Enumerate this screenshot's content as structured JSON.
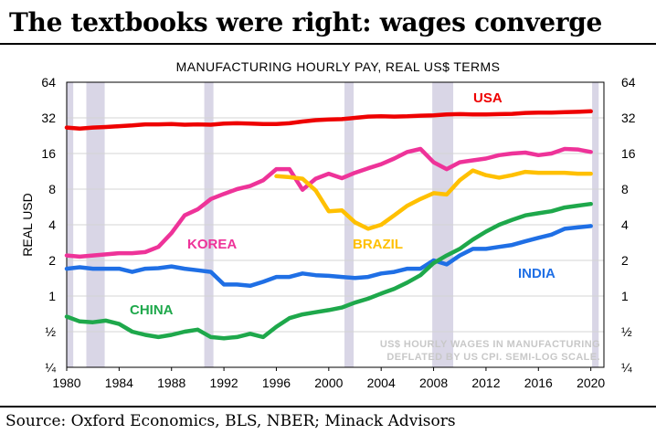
{
  "header": {
    "title": "The textbooks were right: wages converge",
    "source": "Source: Oxford Economics, BLS, NBER; Minack Advisors"
  },
  "chart_data": {
    "type": "line",
    "title": "MANUFACTURING HOURLY PAY, REAL US$ TERMS",
    "ylabel": "REAL USD",
    "xlabel": "",
    "yscale": "log2",
    "ylim": [
      0.25,
      64
    ],
    "xlim": [
      1980,
      2021
    ],
    "x_ticks": [
      1980,
      1984,
      1988,
      1992,
      1996,
      2000,
      2004,
      2008,
      2012,
      2016,
      2020
    ],
    "y_ticks": [
      0.25,
      0.5,
      1,
      2,
      4,
      8,
      16,
      32,
      64
    ],
    "y_tick_labels": [
      "¼",
      "½",
      "1",
      "2",
      "4",
      "8",
      "16",
      "32",
      "64"
    ],
    "grid": true,
    "note": [
      "US$ HOURLY WAGES IN MANUFACTURING",
      "DEFLATED BY US CPI. SEMI-LOG SCALE."
    ],
    "recession_bands": [
      [
        1980.0,
        1980.5
      ],
      [
        1981.5,
        1982.9
      ],
      [
        1990.5,
        1991.2
      ],
      [
        2001.2,
        2001.9
      ],
      [
        2007.9,
        2009.5
      ],
      [
        2020.1,
        2020.6
      ]
    ],
    "series": [
      {
        "name": "USA",
        "color": "#ee0000",
        "x": [
          1980,
          1981,
          1982,
          1983,
          1984,
          1985,
          1986,
          1987,
          1988,
          1989,
          1990,
          1991,
          1992,
          1993,
          1994,
          1995,
          1996,
          1997,
          1998,
          1999,
          2000,
          2001,
          2002,
          2003,
          2004,
          2005,
          2006,
          2007,
          2008,
          2009,
          2010,
          2011,
          2012,
          2013,
          2014,
          2015,
          2016,
          2017,
          2018,
          2019,
          2020
        ],
        "values": [
          26.5,
          26.0,
          26.5,
          26.8,
          27.2,
          27.6,
          28.2,
          28.2,
          28.4,
          28.0,
          28.2,
          28.0,
          28.6,
          28.8,
          28.6,
          28.4,
          28.4,
          28.8,
          29.8,
          30.6,
          31.0,
          31.2,
          32.0,
          32.8,
          33.0,
          32.8,
          33.0,
          33.4,
          33.6,
          34.2,
          34.4,
          34.2,
          34.2,
          34.4,
          34.6,
          35.2,
          35.4,
          35.4,
          35.8,
          36.0,
          36.4
        ]
      },
      {
        "name": "KOREA",
        "color": "#ee3399",
        "x": [
          1980,
          1981,
          1982,
          1983,
          1984,
          1985,
          1986,
          1987,
          1988,
          1989,
          1990,
          1991,
          1992,
          1993,
          1994,
          1995,
          1996,
          1997,
          1998,
          1999,
          2000,
          2001,
          2002,
          2003,
          2004,
          2005,
          2006,
          2007,
          2008,
          2009,
          2010,
          2011,
          2012,
          2013,
          2014,
          2015,
          2016,
          2017,
          2018,
          2019,
          2020
        ],
        "values": [
          2.2,
          2.15,
          2.2,
          2.25,
          2.3,
          2.3,
          2.35,
          2.6,
          3.4,
          4.8,
          5.4,
          6.6,
          7.3,
          8.0,
          8.5,
          9.5,
          11.8,
          11.8,
          7.9,
          9.8,
          10.8,
          9.9,
          11.0,
          12.0,
          13.0,
          14.5,
          16.5,
          17.5,
          13.5,
          11.8,
          13.5,
          14.0,
          14.5,
          15.5,
          16.0,
          16.3,
          15.5,
          16.0,
          17.5,
          17.3,
          16.5
        ]
      },
      {
        "name": "BRAZIL",
        "color": "#ffc000",
        "x": [
          1996,
          1997,
          1998,
          1999,
          2000,
          2001,
          2002,
          2003,
          2004,
          2005,
          2006,
          2007,
          2008,
          2009,
          2010,
          2011,
          2012,
          2013,
          2014,
          2015,
          2016,
          2017,
          2018,
          2019,
          2020
        ],
        "values": [
          10.3,
          10.1,
          9.8,
          7.8,
          5.2,
          5.3,
          4.2,
          3.7,
          4.0,
          4.8,
          5.8,
          6.6,
          7.4,
          7.2,
          9.5,
          11.5,
          10.5,
          10.0,
          10.5,
          11.2,
          11.0,
          11.0,
          11.0,
          10.8,
          10.8
        ]
      },
      {
        "name": "INDIA",
        "color": "#1f6fe5",
        "x": [
          1980,
          1981,
          1982,
          1983,
          1984,
          1985,
          1986,
          1987,
          1988,
          1989,
          1990,
          1991,
          1992,
          1993,
          1994,
          1995,
          1996,
          1997,
          1998,
          1999,
          2000,
          2001,
          2002,
          2003,
          2004,
          2005,
          2006,
          2007,
          2008,
          2009,
          2010,
          2011,
          2012,
          2013,
          2014,
          2015,
          2016,
          2017,
          2018,
          2019,
          2020
        ],
        "values": [
          1.7,
          1.75,
          1.7,
          1.7,
          1.7,
          1.6,
          1.7,
          1.72,
          1.78,
          1.7,
          1.65,
          1.6,
          1.25,
          1.25,
          1.22,
          1.32,
          1.45,
          1.45,
          1.55,
          1.5,
          1.48,
          1.45,
          1.42,
          1.45,
          1.55,
          1.6,
          1.7,
          1.7,
          2.0,
          1.85,
          2.2,
          2.5,
          2.5,
          2.6,
          2.7,
          2.9,
          3.1,
          3.3,
          3.7,
          3.8,
          3.9
        ]
      },
      {
        "name": "CHINA",
        "color": "#1ea84b",
        "x": [
          1980,
          1981,
          1982,
          1983,
          1984,
          1985,
          1986,
          1987,
          1988,
          1989,
          1990,
          1991,
          1992,
          1993,
          1994,
          1995,
          1996,
          1997,
          1998,
          1999,
          2000,
          2001,
          2002,
          2003,
          2004,
          2005,
          2006,
          2007,
          2008,
          2009,
          2010,
          2011,
          2012,
          2013,
          2014,
          2015,
          2016,
          2017,
          2018,
          2019,
          2020
        ],
        "values": [
          0.67,
          0.61,
          0.6,
          0.62,
          0.58,
          0.5,
          0.47,
          0.45,
          0.47,
          0.5,
          0.52,
          0.45,
          0.44,
          0.45,
          0.48,
          0.45,
          0.55,
          0.65,
          0.7,
          0.73,
          0.76,
          0.8,
          0.88,
          0.95,
          1.05,
          1.15,
          1.3,
          1.5,
          1.9,
          2.2,
          2.5,
          3.0,
          3.5,
          4.0,
          4.4,
          4.8,
          5.0,
          5.2,
          5.6,
          5.8,
          6.0
        ]
      }
    ]
  }
}
